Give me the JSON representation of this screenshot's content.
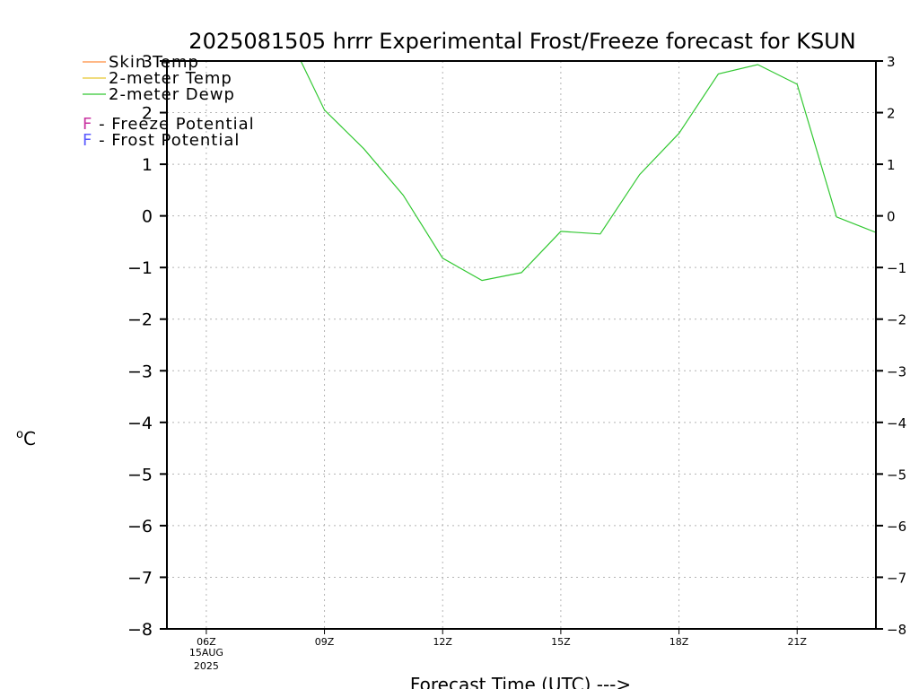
{
  "chart_data": {
    "type": "line",
    "title": "2025081505 hrrr Experimental Frost/Freeze forecast for KSUN",
    "xlabel": "Forecast Time (UTC) --->",
    "ylabel_unit_superscript": "o",
    "ylabel_unit": "C",
    "ylim": [
      -8,
      3
    ],
    "yticks": [
      3,
      2,
      1,
      0,
      -1,
      -2,
      -3,
      -4,
      -5,
      -6,
      -7,
      -8
    ],
    "ytick_labels": [
      "3",
      "2",
      "1",
      "0",
      "−1",
      "−2",
      "−3",
      "−4",
      "−5",
      "−6",
      "−7",
      "−8"
    ],
    "xlim_hours": [
      5,
      23
    ],
    "xticks": [
      {
        "hour": 6,
        "label": "06Z",
        "date": "15AUG",
        "year": "2025"
      },
      {
        "hour": 9,
        "label": "09Z"
      },
      {
        "hour": 12,
        "label": "12Z"
      },
      {
        "hour": 15,
        "label": "15Z"
      },
      {
        "hour": 18,
        "label": "18Z"
      },
      {
        "hour": 21,
        "label": "21Z"
      }
    ],
    "grid": true,
    "legend_position": "top-left",
    "legend": [
      {
        "name": "Skin Temp",
        "color": "#ff8c3c"
      },
      {
        "name": "2-meter Temp",
        "color": "#e6c832"
      },
      {
        "name": "2-meter Dewp",
        "color": "#32c832"
      }
    ],
    "potential_legend": [
      {
        "letter": "F",
        "text": " - Freeze Potential",
        "color": "#c832a0"
      },
      {
        "letter": "F",
        "text": " - Frost Potential",
        "color": "#5a5aff"
      }
    ],
    "series": [
      {
        "name": "2-meter Dewp",
        "color": "#32c832",
        "x": [
          8.4,
          9,
          10,
          11,
          12,
          13,
          14,
          15,
          16,
          17,
          18,
          19,
          20,
          21,
          22,
          23
        ],
        "values": [
          3.0,
          2.05,
          1.3,
          0.4,
          -0.82,
          -1.25,
          -1.1,
          -0.3,
          -0.35,
          0.8,
          1.6,
          2.75,
          2.93,
          2.55,
          -0.02,
          -0.32
        ]
      }
    ]
  }
}
